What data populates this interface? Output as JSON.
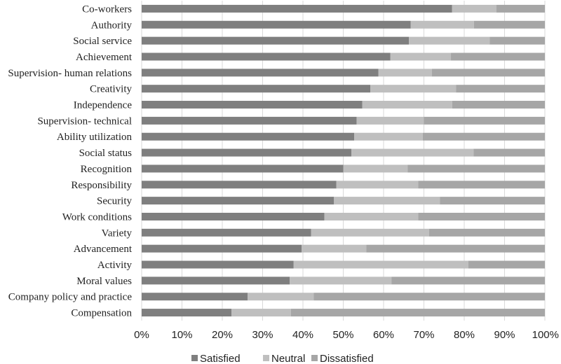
{
  "chart_data": {
    "type": "bar",
    "orientation": "horizontal",
    "stacked": true,
    "categories": [
      "Co-workers",
      "Authority",
      "Social service",
      "Achievement",
      "Supervision- human relations",
      "Creativity",
      "Independence",
      "Supervision- technical",
      "Ability utilization",
      "Social status",
      "Recognition",
      "Responsibility",
      "Security",
      "Work conditions",
      "Variety",
      "Advancement",
      "Activity",
      "Moral values",
      "Company policy and practice",
      "Compensation"
    ],
    "series": [
      {
        "name": "Satisfied",
        "color": "#7f7f7f",
        "values": [
          77,
          66.7,
          66.3,
          61.7,
          58.7,
          56.7,
          54.7,
          53.3,
          52.7,
          52,
          50,
          48.3,
          47.7,
          45.3,
          42,
          39.7,
          37.7,
          36.7,
          26.3,
          22.3
        ]
      },
      {
        "name": "Neutral",
        "color": "#bfbfbf",
        "values": [
          11,
          15.7,
          20,
          15,
          13.3,
          21.3,
          22.3,
          16.7,
          17,
          30.3,
          16,
          20.3,
          26.3,
          23.3,
          29.3,
          16,
          43.3,
          25.3,
          16.4,
          14.7
        ]
      },
      {
        "name": "Dissatisfied",
        "color": "#a6a6a6",
        "values": [
          12,
          17.6,
          13.7,
          23.3,
          28,
          22,
          23,
          30,
          30.3,
          17.7,
          34,
          31.4,
          26,
          31.4,
          28.7,
          44.3,
          19,
          38,
          57.3,
          63
        ]
      }
    ],
    "xlim": [
      0,
      100
    ],
    "xticks": [
      "0%",
      "10%",
      "20%",
      "30%",
      "40%",
      "50%",
      "60%",
      "70%",
      "80%",
      "90%",
      "100%"
    ],
    "grid": true,
    "legend_position": "bottom"
  }
}
